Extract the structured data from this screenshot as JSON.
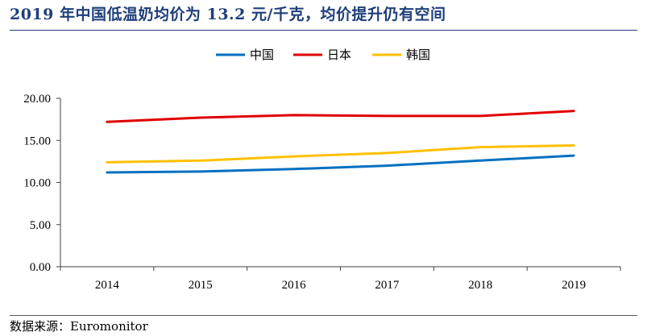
{
  "title": "2019 年中国低温奶均价为 13.2 元/千克，均价提升仍有空间",
  "source": "数据来源：Euromonitor",
  "chart_data": {
    "type": "line",
    "x": [
      "2014",
      "2015",
      "2016",
      "2017",
      "2018",
      "2019"
    ],
    "series": [
      {
        "name": "中国",
        "color": "#0070c0",
        "values": [
          11.2,
          11.3,
          11.6,
          12.0,
          12.6,
          13.2
        ]
      },
      {
        "name": "日本",
        "color": "#e00000",
        "values": [
          17.2,
          17.7,
          18.0,
          17.9,
          17.9,
          18.5
        ]
      },
      {
        "name": "韩国",
        "color": "#ffc000",
        "values": [
          12.4,
          12.6,
          13.1,
          13.5,
          14.2,
          14.4
        ]
      }
    ],
    "yticks": [
      "0.00",
      "5.00",
      "10.00",
      "15.00",
      "20.00"
    ],
    "ylim": [
      0,
      20
    ],
    "legend_position": "top-center",
    "grid": false
  }
}
